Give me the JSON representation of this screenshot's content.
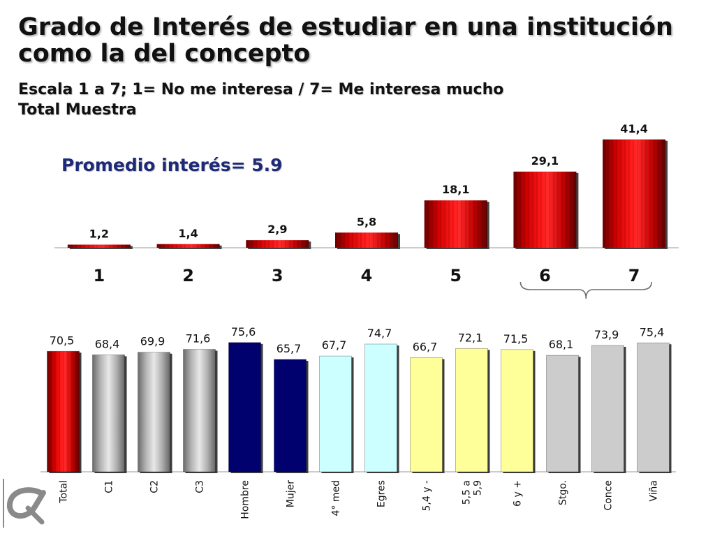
{
  "header": {
    "title": "Grado de Interés de estudiar en una institución como la del concepto",
    "scale_note": "Escala 1 a 7; 1= No me interesa / 7= Me interesa mucho",
    "sample_note": "Total Muestra"
  },
  "promedio_label": "Promedio interés= 5.9",
  "colors": {
    "red": "#e00000",
    "gray": "#b8b8b8",
    "navy": "#00006e",
    "cyan": "#ccffff",
    "yellow": "#ffff99",
    "lightgray": "#cccccc"
  },
  "logo_icon": "alpha-logo-icon",
  "chart_data": [
    {
      "type": "bar",
      "title": "",
      "categories": [
        "1",
        "2",
        "3",
        "4",
        "5",
        "6",
        "7"
      ],
      "values": [
        1.2,
        1.4,
        2.9,
        5.8,
        18.1,
        29.1,
        41.4
      ],
      "labels": [
        "1,2",
        "1,4",
        "2,9",
        "5,8",
        "18,1",
        "29,1",
        "41,4"
      ],
      "ylim": [
        0,
        44
      ],
      "grid": false,
      "annotation": "brace grouping categories 6 and 7"
    },
    {
      "type": "bar",
      "title": "",
      "categories": [
        "Total",
        "C1",
        "C2",
        "C3",
        "Hombre",
        "Mujer",
        "4° med",
        "Egres",
        "5,4 y -",
        "5,5 a 5,9",
        "6 y +",
        "Stgo.",
        "Conce",
        "Viña"
      ],
      "values": [
        70.5,
        68.4,
        69.9,
        71.6,
        75.6,
        65.7,
        67.7,
        74.7,
        66.7,
        72.1,
        71.5,
        68.1,
        73.9,
        75.4
      ],
      "labels": [
        "70,5",
        "68,4",
        "69,9",
        "71,6",
        "75,6",
        "65,7",
        "67,7",
        "74,7",
        "66,7",
        "72,1",
        "71,5",
        "68,1",
        "73,9",
        "75,4"
      ],
      "bar_colors": [
        "red",
        "gray",
        "gray",
        "gray",
        "navy",
        "navy",
        "cyan",
        "cyan",
        "yellow",
        "yellow",
        "yellow",
        "lightgray",
        "lightgray",
        "lightgray"
      ],
      "ylim": [
        0,
        100
      ],
      "grid": false
    }
  ]
}
